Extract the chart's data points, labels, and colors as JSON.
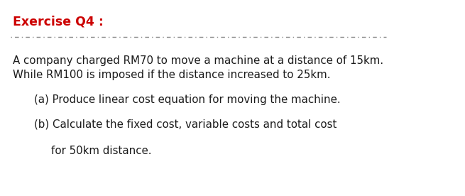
{
  "title": "Exercise Q4 :",
  "title_color": "#cc0000",
  "title_fontsize": 12.5,
  "body_line1": "A company charged RM70 to move a machine at a distance of 15km.",
  "body_line2": "While RM100 is imposed if the distance increased to 25km.",
  "item_a": "(a) Produce linear cost equation for moving the machine.",
  "item_b1": "(b) Calculate the fixed cost, variable costs and total cost",
  "item_b2": "for 50km distance.",
  "body_fontsize": 10.8,
  "body_color": "#1a1a1a",
  "bg_color": "#ffffff",
  "fig_width": 6.55,
  "fig_height": 2.76,
  "dpi": 100
}
